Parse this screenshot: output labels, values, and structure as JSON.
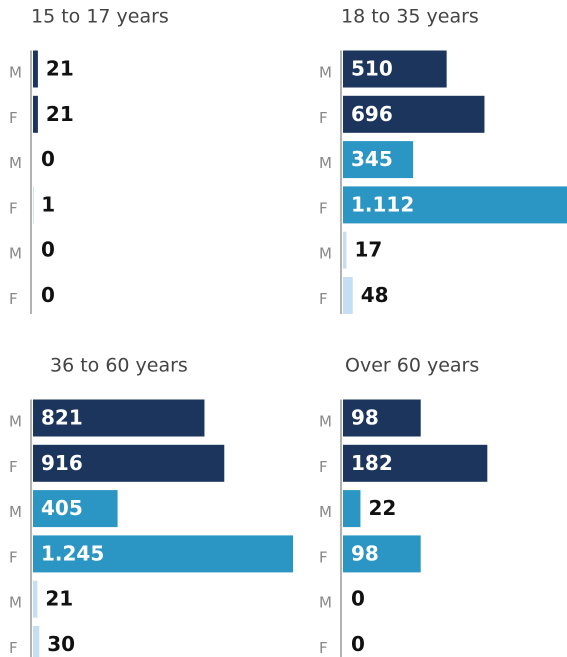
{
  "chart_data": [
    {
      "type": "bar",
      "orientation": "horizontal",
      "title": "15 to 17 years",
      "categories": [
        "M",
        "F",
        "M",
        "F",
        "M",
        "F"
      ],
      "values": [
        21,
        21,
        0,
        1,
        0,
        0
      ],
      "value_labels": [
        "21",
        "21",
        "0",
        "1",
        "0",
        "0"
      ],
      "colors": [
        "#1b355c",
        "#1b355c",
        "#2b96c3",
        "#2b96c3",
        "#c6def3",
        "#c6def3"
      ],
      "xlim": [
        0,
        1112
      ]
    },
    {
      "type": "bar",
      "orientation": "horizontal",
      "title": "18 to 35 years",
      "categories": [
        "M",
        "F",
        "M",
        "F",
        "M",
        "F"
      ],
      "values": [
        510,
        696,
        345,
        1112,
        17,
        48
      ],
      "value_labels": [
        "510",
        "696",
        "345",
        "1.112",
        "17",
        "48"
      ],
      "colors": [
        "#1b355c",
        "#1b355c",
        "#2b96c3",
        "#2b96c3",
        "#c6def3",
        "#c6def3"
      ],
      "xlim": [
        0,
        1112
      ]
    },
    {
      "type": "bar",
      "orientation": "horizontal",
      "title": "36 to 60 years",
      "categories": [
        "M",
        "F",
        "M",
        "F",
        "M",
        "F"
      ],
      "values": [
        821,
        916,
        405,
        1245,
        21,
        30
      ],
      "value_labels": [
        "821",
        "916",
        "405",
        "1.245",
        "21",
        "30"
      ],
      "colors": [
        "#1b355c",
        "#1b355c",
        "#2b96c3",
        "#2b96c3",
        "#c6def3",
        "#c6def3"
      ],
      "xlim": [
        0,
        1245
      ]
    },
    {
      "type": "bar",
      "orientation": "horizontal",
      "title": "Over 60 years",
      "categories": [
        "M",
        "F",
        "M",
        "F",
        "M",
        "F"
      ],
      "values": [
        98,
        182,
        22,
        98,
        0,
        0
      ],
      "value_labels": [
        "98",
        "182",
        "22",
        "98",
        "0",
        "0"
      ],
      "colors": [
        "#1b355c",
        "#1b355c",
        "#2b96c3",
        "#2b96c3",
        "#c6def3",
        "#c6def3"
      ],
      "xlim": [
        0,
        285
      ]
    }
  ]
}
